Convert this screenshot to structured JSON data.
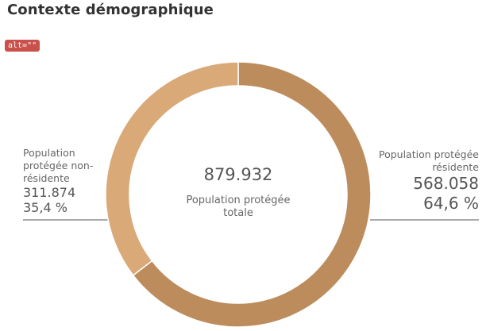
{
  "header": {
    "title": "Contexte démographique",
    "alt_badge": "alt=\"\""
  },
  "chart_data": {
    "type": "pie",
    "variant": "donut",
    "center": {
      "value": "879.932",
      "label": "Population protégée totale"
    },
    "slices": [
      {
        "name": "Population protégée résidente",
        "value": 568058,
        "value_label": "568.058",
        "percent_label": "64,6 %",
        "color": "#bc8c5c"
      },
      {
        "name": "Population protégée non-résidente",
        "value": 311874,
        "value_label": "311.874",
        "percent_label": "35,4 %",
        "color": "#d9a978"
      }
    ],
    "legend": "side labels"
  }
}
